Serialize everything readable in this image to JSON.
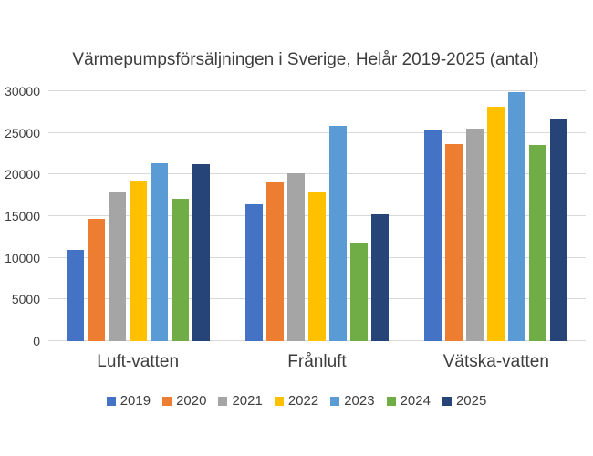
{
  "chart_data": {
    "type": "bar",
    "title": "Värmepumpsförsäljningen i Sverige, Helår 2019-2025 (antal)",
    "categories": [
      "Luft-vatten",
      "Frånluft",
      "Vätska-vatten"
    ],
    "series": [
      {
        "name": "2019",
        "color": "#4472C4",
        "values": [
          11000,
          16400,
          25300
        ]
      },
      {
        "name": "2020",
        "color": "#ED7D31",
        "values": [
          14700,
          19000,
          23700
        ]
      },
      {
        "name": "2021",
        "color": "#A5A5A5",
        "values": [
          17800,
          20200,
          25500
        ]
      },
      {
        "name": "2022",
        "color": "#FFC000",
        "values": [
          19200,
          18000,
          28100
        ]
      },
      {
        "name": "2023",
        "color": "#5B9BD5",
        "values": [
          21300,
          25800,
          29900
        ]
      },
      {
        "name": "2024",
        "color": "#70AD47",
        "values": [
          17100,
          11800,
          23500
        ]
      },
      {
        "name": "2025",
        "color": "#264478",
        "values": [
          21200,
          15200,
          26700
        ]
      }
    ],
    "xlabel": "",
    "ylabel": "",
    "ylim": [
      0,
      30000
    ],
    "ytick_step": 5000,
    "yticks": [
      "0",
      "5000",
      "10000",
      "15000",
      "20000",
      "25000",
      "30000"
    ],
    "grid": true,
    "legend_position": "bottom",
    "colors": {
      "background": "#FFFFFF",
      "gridline": "#D9D9D9",
      "text": "#3D3D3D"
    }
  }
}
